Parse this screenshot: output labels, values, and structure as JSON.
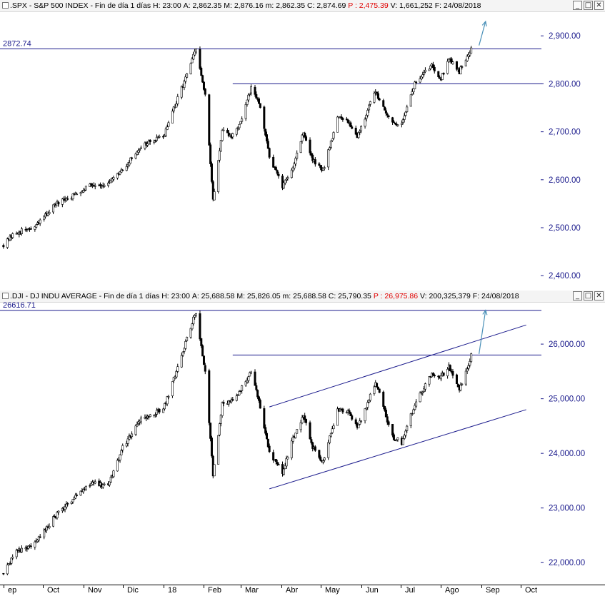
{
  "windows": [
    {
      "title": {
        "prefix": ".SPX - S&P 500 INDEX - Fin de día 1 días",
        "h": "H: 23:00",
        "a": "A: 2,862.35",
        "m": "M: 2,876.16",
        "mn": "m: 2,862.35",
        "c": "C: 2,874.69",
        "p": "P : 2,475.39",
        "v": "V: 1,661,252",
        "f": "F: 24/08/2018"
      },
      "buttons": {
        "minimize": "_",
        "restore": "□",
        "close": "✕"
      }
    },
    {
      "title": {
        "prefix": ".DJI - DJ INDU AVERAGE - Fin de día 1 días",
        "h": "H: 23:00",
        "a": "A: 25,688.58",
        "m": "M: 25,826.05",
        "mn": "m: 25,688.58",
        "c": "C: 25,790.35",
        "p": "P : 26,975.86",
        "v": "V: 200,325,379",
        "f": "F: 24/08/2018"
      },
      "buttons": {
        "minimize": "_",
        "restore": "□",
        "close": "✕"
      }
    }
  ],
  "months": [
    "ep",
    "Oct",
    "Nov",
    "Dic",
    "18",
    "Feb",
    "Mar",
    "Abr",
    "May",
    "Jun",
    "Jul",
    "Ago",
    "Sep",
    "Oct"
  ],
  "colors": {
    "line": "#1a1a8c",
    "arrow": "#4a90b8",
    "candle": "#000000",
    "axis_text": "#1a1a8c",
    "highlight": "#e00000"
  },
  "chart_data": [
    {
      "type": "candlestick",
      "ticker": ".SPX",
      "y_ticks": [
        "2,400.00",
        "2,500.00",
        "2,600.00",
        "2,700.00",
        "2,800.00",
        "2,900.00"
      ],
      "ylim": [
        2375,
        2945
      ],
      "ref_label": "2872.74",
      "horizontal_lines": [
        2872.74,
        2800
      ],
      "path": [
        [
          "2017-09-01",
          2465
        ],
        [
          "2017-09-11",
          2490
        ],
        [
          "2017-09-25",
          2500
        ],
        [
          "2017-10-09",
          2545
        ],
        [
          "2017-10-23",
          2565
        ],
        [
          "2017-11-06",
          2590
        ],
        [
          "2017-11-20",
          2590
        ],
        [
          "2017-12-01",
          2620
        ],
        [
          "2017-12-15",
          2670
        ],
        [
          "2018-01-01",
          2690
        ],
        [
          "2018-01-15",
          2790
        ],
        [
          "2018-01-26",
          2872
        ],
        [
          "2018-02-02",
          2775
        ],
        [
          "2018-02-08",
          2560
        ],
        [
          "2018-02-15",
          2700
        ],
        [
          "2018-02-22",
          2690
        ],
        [
          "2018-03-01",
          2720
        ],
        [
          "2018-03-09",
          2790
        ],
        [
          "2018-03-15",
          2760
        ],
        [
          "2018-03-23",
          2650
        ],
        [
          "2018-04-02",
          2585
        ],
        [
          "2018-04-09",
          2620
        ],
        [
          "2018-04-18",
          2700
        ],
        [
          "2018-04-25",
          2640
        ],
        [
          "2018-05-03",
          2620
        ],
        [
          "2018-05-14",
          2730
        ],
        [
          "2018-05-23",
          2720
        ],
        [
          "2018-05-29",
          2690
        ],
        [
          "2018-06-12",
          2785
        ],
        [
          "2018-06-25",
          2715
        ],
        [
          "2018-07-02",
          2720
        ],
        [
          "2018-07-12",
          2800
        ],
        [
          "2018-07-25",
          2840
        ],
        [
          "2018-08-01",
          2810
        ],
        [
          "2018-08-07",
          2855
        ],
        [
          "2018-08-15",
          2825
        ],
        [
          "2018-08-24",
          2875
        ]
      ],
      "arrow": {
        "from": [
          "2018-08-30",
          2880
        ],
        "to": [
          "2018-09-04",
          2930
        ]
      }
    },
    {
      "type": "candlestick",
      "ticker": ".DJI",
      "y_ticks": [
        "22,000.00",
        "23,000.00",
        "24,000.00",
        "25,000.00",
        "26,000.00"
      ],
      "ylim": [
        21650,
        26720
      ],
      "ref_label": "26616.71",
      "horizontal_lines": [
        26616.71,
        25800
      ],
      "trendlines": [
        {
          "name": "upper",
          "from": [
            "2018-03-23",
            24850
          ],
          "to": [
            "2018-10-05",
            26350
          ]
        },
        {
          "name": "lower",
          "from": [
            "2018-03-23",
            23350
          ],
          "to": [
            "2018-10-05",
            24800
          ]
        }
      ],
      "path": [
        [
          "2017-09-01",
          21800
        ],
        [
          "2017-09-11",
          22200
        ],
        [
          "2017-09-25",
          22350
        ],
        [
          "2017-10-09",
          22800
        ],
        [
          "2017-10-23",
          23150
        ],
        [
          "2017-11-06",
          23450
        ],
        [
          "2017-11-20",
          23400
        ],
        [
          "2017-12-01",
          24100
        ],
        [
          "2017-12-15",
          24650
        ],
        [
          "2018-01-01",
          24800
        ],
        [
          "2018-01-15",
          25800
        ],
        [
          "2018-01-26",
          26600
        ],
        [
          "2018-02-02",
          25500
        ],
        [
          "2018-02-08",
          23600
        ],
        [
          "2018-02-15",
          24900
        ],
        [
          "2018-02-22",
          24950
        ],
        [
          "2018-03-01",
          25150
        ],
        [
          "2018-03-09",
          25500
        ],
        [
          "2018-03-15",
          24950
        ],
        [
          "2018-03-23",
          24000
        ],
        [
          "2018-04-02",
          23650
        ],
        [
          "2018-04-09",
          24200
        ],
        [
          "2018-04-18",
          24700
        ],
        [
          "2018-04-25",
          24100
        ],
        [
          "2018-05-03",
          23850
        ],
        [
          "2018-05-14",
          24800
        ],
        [
          "2018-05-23",
          24750
        ],
        [
          "2018-05-29",
          24450
        ],
        [
          "2018-06-12",
          25300
        ],
        [
          "2018-06-25",
          24300
        ],
        [
          "2018-07-02",
          24200
        ],
        [
          "2018-07-12",
          24900
        ],
        [
          "2018-07-25",
          25450
        ],
        [
          "2018-08-01",
          25400
        ],
        [
          "2018-08-07",
          25600
        ],
        [
          "2018-08-15",
          25150
        ],
        [
          "2018-08-24",
          25790
        ]
      ],
      "arrow": {
        "from": [
          "2018-08-30",
          25820
        ],
        "to": [
          "2018-09-04",
          26620
        ]
      }
    }
  ]
}
